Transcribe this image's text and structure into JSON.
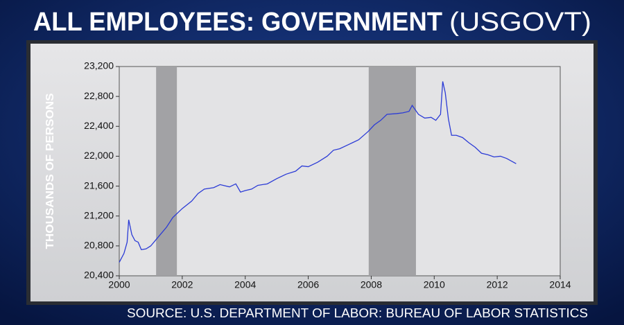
{
  "chart_data": {
    "type": "line",
    "title": "ALL EMPLOYEES: GOVERNMENT",
    "title_code": "(USGOVT)",
    "y_label": "THOUSANDS OF PERSONS",
    "source": "SOURCE: U.S. DEPARTMENT OF LABOR: BUREAU OF LABOR STATISTICS",
    "xlim": [
      2000,
      2014
    ],
    "xticks": [
      2000,
      2002,
      2004,
      2006,
      2008,
      2010,
      2012,
      2014
    ],
    "ylim": [
      20400,
      23200
    ],
    "yticks": [
      {
        "value": 20400,
        "label": "20,400"
      },
      {
        "value": 20800,
        "label": "20,800"
      },
      {
        "value": 21200,
        "label": "21,200"
      },
      {
        "value": 21600,
        "label": "21,600"
      },
      {
        "value": 22000,
        "label": "22,000"
      },
      {
        "value": 22400,
        "label": "22,400"
      },
      {
        "value": 22800,
        "label": "22,800"
      },
      {
        "value": 23200,
        "label": "23,200"
      }
    ],
    "shaded_ranges": [
      [
        2001.17,
        2001.83
      ],
      [
        2007.92,
        2009.42
      ]
    ],
    "shade_color": "#a2a2a5",
    "color": "#2b3bd6",
    "x": [
      2000.0,
      2000.15,
      2000.25,
      2000.3,
      2000.4,
      2000.5,
      2000.6,
      2000.7,
      2000.85,
      2001.0,
      2001.2,
      2001.5,
      2001.7,
      2002.0,
      2002.3,
      2002.5,
      2002.7,
      2003.0,
      2003.2,
      2003.5,
      2003.7,
      2003.85,
      2004.0,
      2004.2,
      2004.4,
      2004.7,
      2005.0,
      2005.3,
      2005.6,
      2005.8,
      2006.0,
      2006.3,
      2006.6,
      2006.8,
      2007.0,
      2007.3,
      2007.6,
      2007.9,
      2008.1,
      2008.3,
      2008.5,
      2008.8,
      2009.0,
      2009.2,
      2009.3,
      2009.5,
      2009.7,
      2009.9,
      2010.05,
      2010.2,
      2010.27,
      2010.35,
      2010.45,
      2010.55,
      2010.7,
      2010.9,
      2011.1,
      2011.3,
      2011.5,
      2011.7,
      2011.9,
      2012.1,
      2012.3,
      2012.6
    ],
    "values": [
      20580,
      20700,
      20850,
      21150,
      20950,
      20870,
      20850,
      20750,
      20760,
      20800,
      20900,
      21050,
      21180,
      21300,
      21400,
      21500,
      21560,
      21580,
      21620,
      21590,
      21630,
      21520,
      21540,
      21560,
      21610,
      21630,
      21700,
      21760,
      21800,
      21870,
      21860,
      21920,
      22000,
      22080,
      22100,
      22160,
      22220,
      22330,
      22420,
      22480,
      22560,
      22570,
      22580,
      22600,
      22680,
      22560,
      22510,
      22520,
      22480,
      22560,
      23000,
      22850,
      22500,
      22280,
      22280,
      22250,
      22180,
      22120,
      22040,
      22020,
      21990,
      22000,
      21970,
      21900
    ]
  }
}
